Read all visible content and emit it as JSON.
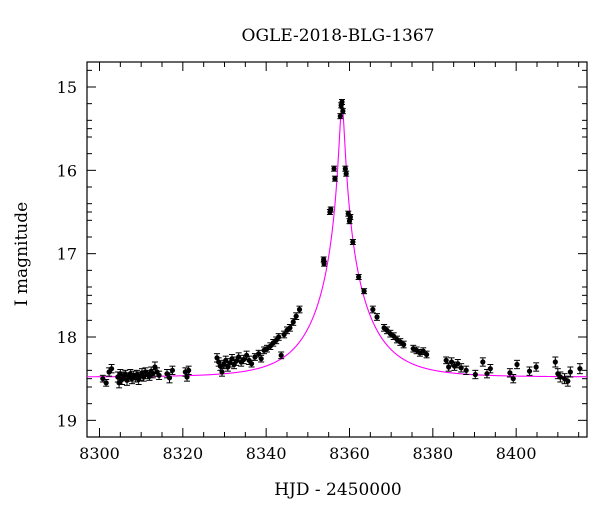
{
  "chart_data": {
    "type": "scatter",
    "title": "OGLE-2018-BLG-1367",
    "xlabel": "HJD - 2450000",
    "ylabel": "I magnitude",
    "xlim": [
      8297,
      8417
    ],
    "ylim": [
      19.2,
      14.7
    ],
    "y_inverted": true,
    "xticks": [
      8300,
      8320,
      8340,
      8360,
      8380,
      8400
    ],
    "yticks": [
      15,
      16,
      17,
      18,
      19
    ],
    "grid": false,
    "model_color": "#ff00ff",
    "point_color": "#000000",
    "model": {
      "type": "point-lens",
      "t0": 8358.2,
      "tE": 12.0,
      "u0": 0.05,
      "baseline_mag": 18.48
    },
    "series": [
      {
        "points": [
          [
            8300.8,
            18.5,
            0.04
          ],
          [
            8301.6,
            18.55,
            0.04
          ],
          [
            8302.3,
            18.42,
            0.05
          ],
          [
            8302.9,
            18.38,
            0.05
          ],
          [
            8304.4,
            18.48,
            0.06
          ],
          [
            8304.7,
            18.55,
            0.06
          ],
          [
            8305.0,
            18.44,
            0.05
          ],
          [
            8305.4,
            18.51,
            0.06
          ],
          [
            8305.8,
            18.47,
            0.05
          ],
          [
            8306.2,
            18.45,
            0.05
          ],
          [
            8306.6,
            18.52,
            0.06
          ],
          [
            8307.0,
            18.48,
            0.05
          ],
          [
            8307.4,
            18.44,
            0.05
          ],
          [
            8307.8,
            18.5,
            0.06
          ],
          [
            8308.2,
            18.46,
            0.05
          ],
          [
            8308.6,
            18.49,
            0.05
          ],
          [
            8309.0,
            18.45,
            0.05
          ],
          [
            8309.4,
            18.51,
            0.06
          ],
          [
            8309.8,
            18.47,
            0.05
          ],
          [
            8310.2,
            18.43,
            0.05
          ],
          [
            8310.6,
            18.48,
            0.05
          ],
          [
            8311.0,
            18.42,
            0.05
          ],
          [
            8311.5,
            18.45,
            0.05
          ],
          [
            8312.0,
            18.47,
            0.05
          ],
          [
            8312.4,
            18.41,
            0.05
          ],
          [
            8312.8,
            18.44,
            0.05
          ],
          [
            8313.3,
            18.36,
            0.06
          ],
          [
            8313.8,
            18.42,
            0.05
          ],
          [
            8314.3,
            18.46,
            0.05
          ],
          [
            8316.2,
            18.44,
            0.05
          ],
          [
            8316.8,
            18.49,
            0.06
          ],
          [
            8317.5,
            18.4,
            0.05
          ],
          [
            8320.6,
            18.42,
            0.05
          ],
          [
            8321.0,
            18.48,
            0.05
          ],
          [
            8321.4,
            18.4,
            0.05
          ],
          [
            8328.2,
            18.25,
            0.05
          ],
          [
            8328.6,
            18.3,
            0.05
          ],
          [
            8329.0,
            18.35,
            0.05
          ],
          [
            8329.4,
            18.42,
            0.05
          ],
          [
            8329.8,
            18.33,
            0.05
          ],
          [
            8330.3,
            18.28,
            0.05
          ],
          [
            8330.8,
            18.36,
            0.05
          ],
          [
            8331.3,
            18.31,
            0.05
          ],
          [
            8331.8,
            18.26,
            0.05
          ],
          [
            8332.3,
            18.33,
            0.05
          ],
          [
            8332.8,
            18.29,
            0.05
          ],
          [
            8333.4,
            18.24,
            0.05
          ],
          [
            8334.0,
            18.3,
            0.05
          ],
          [
            8334.6,
            18.27,
            0.05
          ],
          [
            8335.3,
            18.22,
            0.05
          ],
          [
            8335.9,
            18.28,
            0.05
          ],
          [
            8336.5,
            18.32,
            0.04
          ],
          [
            8337.3,
            18.24,
            0.04
          ],
          [
            8338.2,
            18.2,
            0.04
          ],
          [
            8338.8,
            18.26,
            0.04
          ],
          [
            8339.5,
            18.16,
            0.04
          ],
          [
            8340.2,
            18.14,
            0.04
          ],
          [
            8341.0,
            18.11,
            0.04
          ],
          [
            8341.7,
            18.07,
            0.04
          ],
          [
            8342.4,
            18.04,
            0.04
          ],
          [
            8343.0,
            18.0,
            0.04
          ],
          [
            8343.6,
            18.22,
            0.04
          ],
          [
            8344.3,
            17.97,
            0.04
          ],
          [
            8345.0,
            17.92,
            0.04
          ],
          [
            8345.7,
            17.89,
            0.04
          ],
          [
            8346.5,
            17.82,
            0.04
          ],
          [
            8347.2,
            17.75,
            0.04
          ],
          [
            8348.0,
            17.67,
            0.04
          ],
          [
            8353.8,
            17.07,
            0.03
          ],
          [
            8353.9,
            17.12,
            0.03
          ],
          [
            8355.3,
            16.5,
            0.03
          ],
          [
            8355.5,
            16.47,
            0.03
          ],
          [
            8356.3,
            15.98,
            0.03
          ],
          [
            8356.5,
            16.1,
            0.03
          ],
          [
            8357.8,
            15.35,
            0.03
          ],
          [
            8358.0,
            15.22,
            0.03
          ],
          [
            8358.2,
            15.18,
            0.03
          ],
          [
            8358.4,
            15.29,
            0.03
          ],
          [
            8359.0,
            15.98,
            0.03
          ],
          [
            8359.2,
            16.04,
            0.03
          ],
          [
            8359.7,
            16.52,
            0.03
          ],
          [
            8360.0,
            16.61,
            0.03
          ],
          [
            8360.2,
            16.56,
            0.03
          ],
          [
            8360.8,
            16.86,
            0.03
          ],
          [
            8362.2,
            17.28,
            0.03
          ],
          [
            8363.5,
            17.45,
            0.03
          ],
          [
            8365.6,
            17.67,
            0.04
          ],
          [
            8366.6,
            17.76,
            0.04
          ],
          [
            8368.3,
            17.89,
            0.04
          ],
          [
            8369.0,
            17.92,
            0.04
          ],
          [
            8369.8,
            17.96,
            0.04
          ],
          [
            8370.6,
            17.99,
            0.04
          ],
          [
            8371.4,
            18.03,
            0.04
          ],
          [
            8372.2,
            18.06,
            0.04
          ],
          [
            8373.0,
            18.09,
            0.04
          ],
          [
            8375.3,
            18.14,
            0.04
          ],
          [
            8376.1,
            18.16,
            0.04
          ],
          [
            8376.9,
            18.19,
            0.04
          ],
          [
            8377.7,
            18.17,
            0.04
          ],
          [
            8378.5,
            18.21,
            0.04
          ],
          [
            8383.2,
            18.28,
            0.04
          ],
          [
            8383.8,
            18.36,
            0.05
          ],
          [
            8384.5,
            18.3,
            0.05
          ],
          [
            8385.2,
            18.35,
            0.05
          ],
          [
            8386.0,
            18.32,
            0.05
          ],
          [
            8386.8,
            18.37,
            0.05
          ],
          [
            8388.0,
            18.4,
            0.05
          ],
          [
            8390.2,
            18.45,
            0.05
          ],
          [
            8392.0,
            18.3,
            0.05
          ],
          [
            8393.0,
            18.44,
            0.05
          ],
          [
            8393.8,
            18.38,
            0.05
          ],
          [
            8398.5,
            18.43,
            0.05
          ],
          [
            8399.3,
            18.5,
            0.05
          ],
          [
            8400.2,
            18.33,
            0.05
          ],
          [
            8403.2,
            18.41,
            0.05
          ],
          [
            8404.8,
            18.36,
            0.05
          ],
          [
            8409.4,
            18.3,
            0.06
          ],
          [
            8410.0,
            18.44,
            0.06
          ],
          [
            8410.6,
            18.48,
            0.06
          ],
          [
            8411.6,
            18.5,
            0.06
          ],
          [
            8412.4,
            18.53,
            0.06
          ],
          [
            8413.0,
            18.42,
            0.06
          ],
          [
            8415.3,
            18.38,
            0.06
          ]
        ]
      }
    ]
  }
}
